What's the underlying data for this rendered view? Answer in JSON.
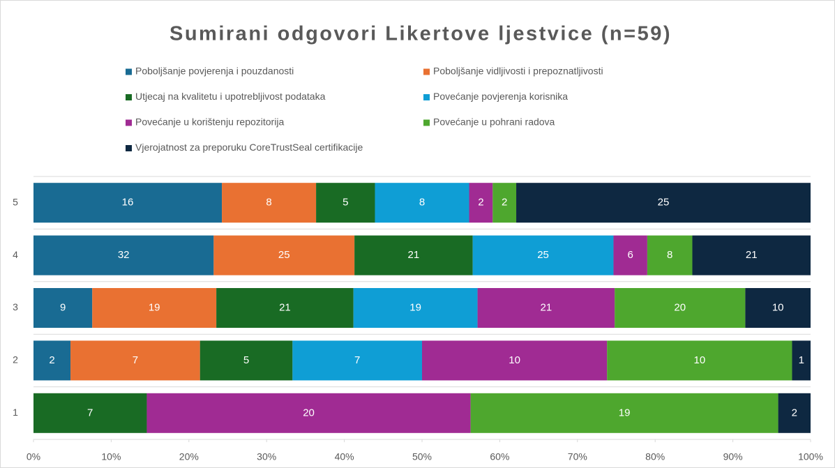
{
  "chart_data": {
    "type": "bar",
    "orientation": "horizontal",
    "stacked": "percent",
    "title": "Sumirani odgovori Likertove ljestvice (n=59)",
    "categories": [
      "1",
      "2",
      "3",
      "4",
      "5"
    ],
    "series": [
      {
        "name": "Poboljšanje povjerenja i pouzdanosti",
        "color": "#196b93",
        "values": [
          null,
          2,
          9,
          32,
          16
        ]
      },
      {
        "name": "Poboljšanje vidljivosti i prepoznatljivosti",
        "color": "#e97132",
        "values": [
          null,
          7,
          19,
          25,
          8
        ]
      },
      {
        "name": "Utjecaj na kvalitetu i upotrebljivost podataka",
        "color": "#196b24",
        "values": [
          7,
          5,
          21,
          21,
          5
        ]
      },
      {
        "name": "Povećanje povjerenja korisnika",
        "color": "#0f9ed5",
        "values": [
          null,
          7,
          19,
          25,
          8
        ]
      },
      {
        "name": "Povećanje u korištenju repozitorija",
        "color": "#a02b93",
        "values": [
          20,
          10,
          21,
          6,
          2
        ]
      },
      {
        "name": "Povećanje u pohrani radova",
        "color": "#4ea72e",
        "values": [
          19,
          10,
          20,
          8,
          2
        ]
      },
      {
        "name": "Vjerojatnost za preporuku CoreTrustSeal certifikacije",
        "color": "#0e2841",
        "values": [
          2,
          1,
          10,
          21,
          25
        ]
      }
    ],
    "xlim": [
      0,
      100
    ],
    "xticks": [
      {
        "value": 0,
        "label": "0%"
      },
      {
        "value": 10,
        "label": "10%"
      },
      {
        "value": 20,
        "label": "20%"
      },
      {
        "value": 30,
        "label": "30%"
      },
      {
        "value": 40,
        "label": "40%"
      },
      {
        "value": 50,
        "label": "50%"
      },
      {
        "value": 60,
        "label": "60%"
      },
      {
        "value": 70,
        "label": "70%"
      },
      {
        "value": 80,
        "label": "80%"
      },
      {
        "value": 90,
        "label": "90%"
      },
      {
        "value": 100,
        "label": "100%"
      }
    ],
    "legend": "top"
  }
}
